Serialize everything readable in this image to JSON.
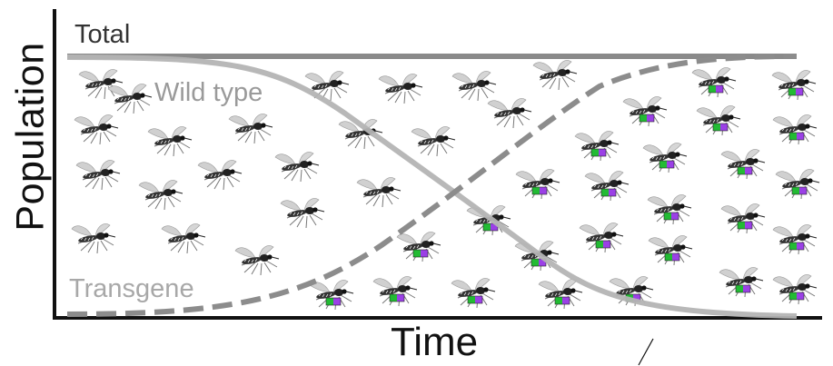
{
  "axes": {
    "y_label": "Population",
    "x_label": "Time"
  },
  "curves": {
    "total": {
      "label": "Total",
      "color": "#8a8a8a",
      "style": "solid"
    },
    "wild_type": {
      "label": "Wild type",
      "color": "#b4b4b4",
      "style": "solid"
    },
    "transgene": {
      "label": "Transgene",
      "color": "#8c8c8c",
      "style": "dashed"
    }
  },
  "mosquitoes": {
    "description_icon": "mosquito-icon",
    "transgene_marker_colors": [
      "#22bb33",
      "#9b40e6"
    ]
  }
}
